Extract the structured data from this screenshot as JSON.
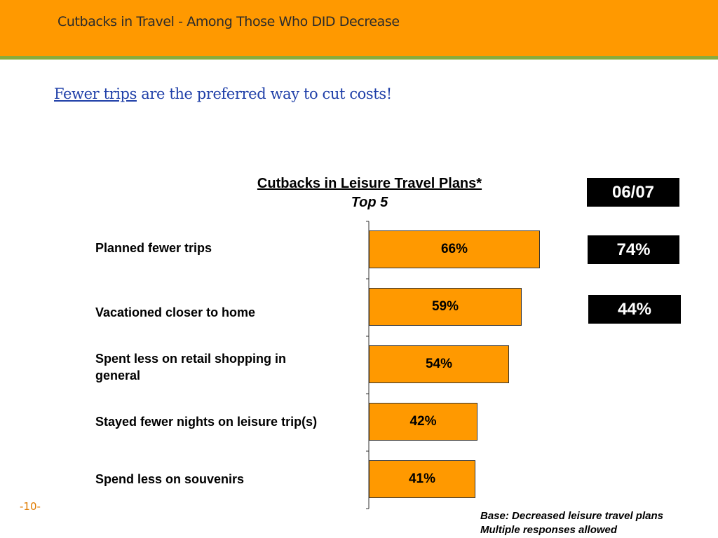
{
  "header": {
    "title": "Cutbacks in Travel - Among Those Who DID Decrease"
  },
  "subtitle": {
    "underlined": "Fewer trips",
    "rest": " are the preferred way to cut costs!"
  },
  "chart_data": {
    "type": "bar",
    "orientation": "horizontal",
    "title": "Cutbacks in Leisure Travel Plans*",
    "subtitle": "Top 5",
    "categories": [
      "Planned fewer trips",
      "Vacationed closer to home",
      "Spent less on retail shopping in general",
      "Stayed fewer nights on leisure trip(s)",
      "Spend less on souvenirs"
    ],
    "values": [
      66,
      59,
      54,
      42,
      41
    ],
    "value_labels": [
      "66%",
      "59%",
      "54%",
      "42%",
      "41%"
    ],
    "xlim": [
      0,
      100
    ],
    "bar_color": "#ff9900",
    "comparison": {
      "header": "06/07",
      "values": [
        "74%",
        "44%"
      ]
    }
  },
  "footer": {
    "base_line1": "Base:  Decreased leisure travel plans",
    "base_line2": "Multiple responses allowed",
    "page_number": "-10-"
  }
}
